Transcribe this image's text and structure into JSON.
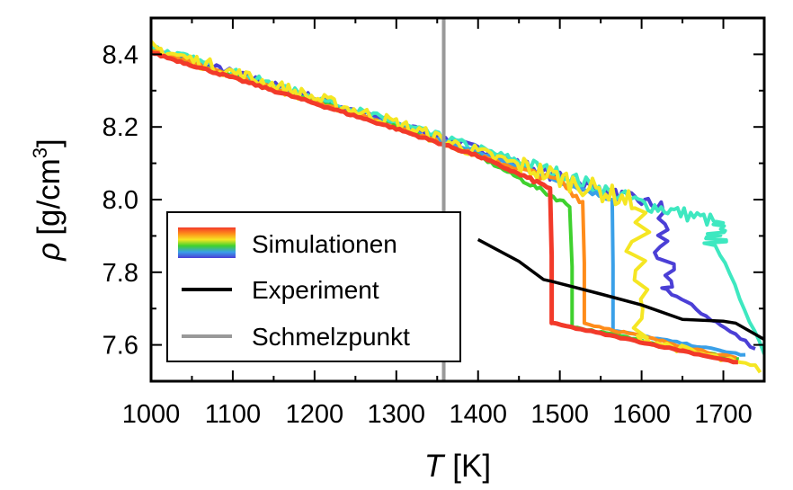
{
  "chart_data": {
    "type": "line",
    "xlabel": {
      "italic": "T",
      "unit": "[K]"
    },
    "ylabel": {
      "symbol": "ρ",
      "unit": "[g/cm",
      "exp": "3",
      "close": "]"
    },
    "xlim": [
      1000,
      1750
    ],
    "ylim": [
      7.5,
      8.5
    ],
    "xticks": [
      "1000",
      "1100",
      "1200",
      "1300",
      "1400",
      "1500",
      "1600",
      "1700"
    ],
    "yticks": [
      "7.6",
      "7.8",
      "8.0",
      "8.2",
      "8.4"
    ],
    "legend": {
      "position": "lower-left",
      "items": [
        {
          "label": "Simulationen",
          "kind": "rainbow"
        },
        {
          "label": "Experiment",
          "color": "#000000"
        },
        {
          "label": "Schmelzpunkt",
          "color": "#999999"
        }
      ]
    },
    "rainbow_colors": [
      "#f23a2a",
      "#ff8c1a",
      "#f5e623",
      "#3fd12e",
      "#3aa0e8",
      "#4b3fd6"
    ],
    "melting_point": {
      "x": 1358,
      "color": "#999999"
    },
    "experiment": {
      "color": "#000000",
      "x": [
        1400,
        1450,
        1480,
        1490,
        1550,
        1600,
        1650,
        1700,
        1715,
        1750
      ],
      "y": [
        7.89,
        7.83,
        7.78,
        7.775,
        7.74,
        7.71,
        7.67,
        7.665,
        7.66,
        7.615
      ]
    },
    "simulations": [
      {
        "color": "#4b3fd6",
        "jitter": 0.01,
        "tm": 1625,
        "drop_to": 7.76,
        "liquid_end": [
          1740,
          7.59
        ],
        "x": [
          1000,
          1100,
          1200,
          1300,
          1400,
          1500,
          1560,
          1625
        ],
        "y": [
          8.41,
          8.35,
          8.28,
          8.21,
          8.14,
          8.06,
          8.02,
          7.98
        ]
      },
      {
        "color": "#3ee8c0",
        "jitter": 0.012,
        "tm": 1690,
        "drop_to": 7.88,
        "liquid_end": [
          1750,
          7.58
        ],
        "x": [
          1000,
          1100,
          1200,
          1300,
          1400,
          1500,
          1600,
          1690
        ],
        "y": [
          8.42,
          8.35,
          8.28,
          8.21,
          8.14,
          8.07,
          7.99,
          7.94
        ]
      },
      {
        "color": "#3aa0e8",
        "jitter": 0.004,
        "tm": 1565,
        "drop_to": 7.64,
        "liquid_end": [
          1730,
          7.57
        ],
        "x": [
          1000,
          1100,
          1200,
          1300,
          1400,
          1500,
          1565
        ],
        "y": [
          8.41,
          8.34,
          8.27,
          8.2,
          8.13,
          8.05,
          8.0
        ]
      },
      {
        "color": "#3fd12e",
        "jitter": 0.004,
        "tm": 1515,
        "drop_to": 7.65,
        "liquid_end": [
          1720,
          7.56
        ],
        "x": [
          1000,
          1100,
          1200,
          1300,
          1400,
          1515
        ],
        "y": [
          8.41,
          8.34,
          8.27,
          8.2,
          8.12,
          7.98
        ]
      },
      {
        "color": "#ff8c1a",
        "jitter": 0.006,
        "tm": 1530,
        "drop_to": 7.66,
        "liquid_end": [
          1720,
          7.56
        ],
        "x": [
          1000,
          1100,
          1200,
          1300,
          1400,
          1500,
          1530
        ],
        "y": [
          8.41,
          8.34,
          8.27,
          8.2,
          8.12,
          8.05,
          7.99
        ]
      },
      {
        "color": "#f5e623",
        "jitter": 0.018,
        "tm": 1595,
        "drop_to": 7.62,
        "liquid_end": [
          1750,
          7.53
        ],
        "x": [
          1000,
          1100,
          1200,
          1300,
          1400,
          1500,
          1595
        ],
        "y": [
          8.42,
          8.35,
          8.28,
          8.21,
          8.13,
          8.06,
          7.99
        ]
      },
      {
        "color": "#f23a2a",
        "jitter": 0.003,
        "tm": 1490,
        "drop_to": 7.66,
        "liquid_end": [
          1720,
          7.55
        ],
        "x": [
          1000,
          1100,
          1200,
          1300,
          1400,
          1490
        ],
        "y": [
          8.405,
          8.335,
          8.265,
          8.195,
          8.12,
          8.03
        ]
      }
    ]
  }
}
